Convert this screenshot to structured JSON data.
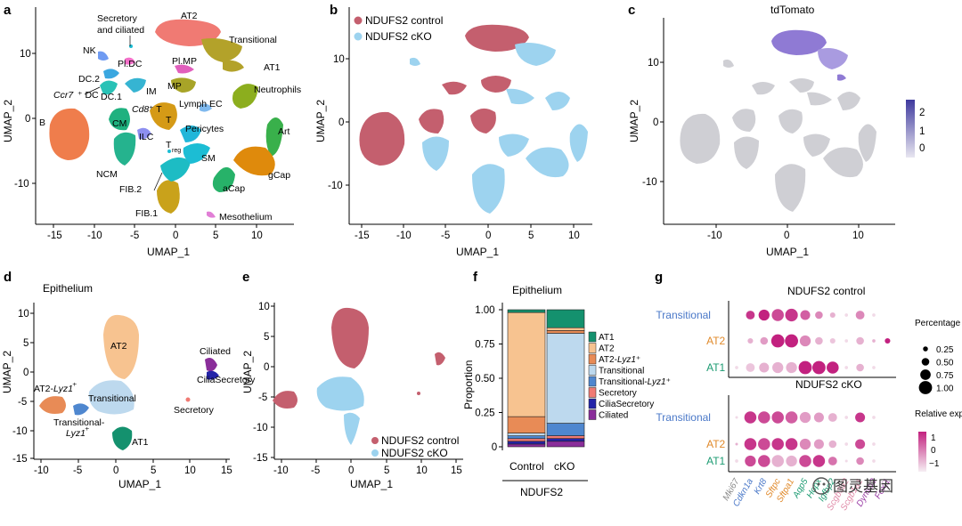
{
  "panels": {
    "a": {
      "letter": "a",
      "xlabel": "UMAP_1",
      "ylabel": "UMAP_2",
      "xticks": [
        "-15",
        "-10",
        "-5",
        "0",
        "5",
        "10"
      ],
      "yticks": [
        "10",
        "0",
        "-10"
      ],
      "clusters": [
        {
          "label": "AT2",
          "color": "#f07a73"
        },
        {
          "label": "Transitional",
          "color": "#b3a22a"
        },
        {
          "label": "AT1",
          "color": "#b3a22a"
        },
        {
          "label": "Neutrophils",
          "color": "#8cae1e"
        },
        {
          "label": "Art",
          "color": "#39b04b"
        },
        {
          "label": "gCap",
          "color": "#df8a0c"
        },
        {
          "label": "aCap",
          "color": "#27b269"
        },
        {
          "label": "B",
          "color": "#ef7d4c"
        },
        {
          "label": "CM",
          "color": "#1fb17f"
        },
        {
          "label": "NCM",
          "color": "#25b38e"
        },
        {
          "label": "FIB.1",
          "color": "#c9a21b"
        },
        {
          "label": "FIB.2",
          "color": "#1dbcc4"
        },
        {
          "label": "SM",
          "color": "#1cbdd4"
        },
        {
          "label": "Pericytes",
          "color": "#21b6d9"
        },
        {
          "label": "T",
          "color": "#d59a16"
        },
        {
          "label": "ILC",
          "color": "#8d8ff0"
        },
        {
          "label": "Lymph EC",
          "color": "#7fb9ee"
        },
        {
          "label": "MP",
          "color": "#a8a428"
        },
        {
          "label": "Pl.MP",
          "color": "#e15fbd"
        },
        {
          "label": "IM",
          "color": "#36b4d2"
        },
        {
          "label": "DC.1",
          "color": "#29c2b6"
        },
        {
          "label": "DC.2",
          "color": "#3aa7e0"
        },
        {
          "label": "NK",
          "color": "#6f9bf2"
        },
        {
          "label": "Pl.DC",
          "color": "#f36fc9"
        },
        {
          "label": "Mesothelium",
          "color": "#e17fd6"
        }
      ],
      "labels": {
        "sec": "Secretory",
        "sec2": "and ciliated",
        "ccr7": "Ccr7",
        "ccr7b": "⁺ DC",
        "cd8": "Cd8",
        "cd8b": "⁺ T",
        "treg": "T",
        "tregsub": "reg"
      }
    },
    "b": {
      "letter": "b",
      "xlabel": "UMAP_1",
      "ylabel": "UMAP_2",
      "xticks": [
        "-15",
        "-10",
        "-5",
        "0",
        "5",
        "10"
      ],
      "yticks": [
        "10",
        "0",
        "-10"
      ],
      "legend": [
        {
          "label": "NDUFS2 control",
          "color": "#c45f6e"
        },
        {
          "label": "NDUFS2 cKO",
          "color": "#9dd3ef"
        }
      ]
    },
    "c": {
      "letter": "c",
      "title": "tdTomato",
      "xlabel": "UMAP_1",
      "ylabel": "UMAP_2",
      "xticks": [
        "-10",
        "0",
        "10"
      ],
      "yticks": [
        "10",
        "0",
        "-10"
      ],
      "scale": [
        "2",
        "1",
        "0"
      ]
    },
    "d": {
      "letter": "d",
      "title": "Epithelium",
      "xlabel": "UMAP_1",
      "ylabel": "UMAP_2",
      "xticks": [
        "-10",
        "-5",
        "0",
        "5",
        "10",
        "15"
      ],
      "yticks": [
        "10",
        "5",
        "0",
        "-5",
        "-10",
        "-15"
      ],
      "labels": {
        "at2": "AT2",
        "ciliated": "Ciliated",
        "ciliasec": "CiliaSecretory",
        "at2lyz": "AT2-",
        "lyz": "Lyz1",
        "plus": "⁺",
        "trans": "Transitional",
        "translyz1": "Transitional-",
        "secretory": "Secretory",
        "at1": "AT1"
      }
    },
    "e": {
      "letter": "e",
      "xlabel": "UMAP_1",
      "ylabel": "UMAP_2",
      "xticks": [
        "-10",
        "-5",
        "0",
        "5",
        "10",
        "15"
      ],
      "yticks": [
        "10",
        "5",
        "0",
        "-5",
        "-10",
        "-15"
      ],
      "legend": [
        {
          "label": "NDUFS2 control",
          "color": "#c45f6e"
        },
        {
          "label": "NDUFS2 cKO",
          "color": "#9dd3ef"
        }
      ]
    },
    "f": {
      "letter": "f",
      "title": "Epithelium",
      "ylabel": "Proportion",
      "group": "NDUFS2"
    },
    "g": {
      "letter": "g",
      "title1": "NDUFS2 control",
      "title2": "NDUFS2 cKO",
      "leg_pct_title": "Percentage expression",
      "leg_rel_title": "Relative expression",
      "watermark": "图灵基因"
    }
  },
  "chart_data": [
    {
      "type": "scatter",
      "panel": "a",
      "title": "",
      "xlabel": "UMAP_1",
      "ylabel": "UMAP_2",
      "xlim": [
        -17,
        14
      ],
      "ylim": [
        -14,
        14
      ]
    },
    {
      "type": "bar",
      "panel": "f",
      "title": "Epithelium",
      "xlabel": "",
      "ylabel": "Proportion",
      "ylim": [
        0,
        1
      ],
      "yticks": [
        "0",
        "0.25",
        "0.50",
        "0.75",
        "1.00"
      ],
      "categories": [
        "Control",
        "cKO"
      ],
      "series": [
        {
          "name": "AT1",
          "color": "#14916e",
          "values": [
            0.02,
            0.13
          ]
        },
        {
          "name": "AT2",
          "color": "#f7c390",
          "values": [
            0.76,
            0.02
          ]
        },
        {
          "name": "AT2-Lyz1⁺",
          "color": "#e88b56",
          "values": [
            0.12,
            0.02
          ]
        },
        {
          "name": "Transitional",
          "color": "#bdd9ee",
          "values": [
            0.02,
            0.65
          ]
        },
        {
          "name": "Transitional-Lyz1⁺",
          "color": "#4f87cf",
          "values": [
            0.02,
            0.09
          ]
        },
        {
          "name": "Secretory",
          "color": "#f07a73",
          "values": [
            0.02,
            0.02
          ]
        },
        {
          "name": "CiliaSecretory",
          "color": "#2424a8",
          "values": [
            0.02,
            0.02
          ]
        },
        {
          "name": "Ciliated",
          "color": "#8a2e9a",
          "values": [
            0.02,
            0.04
          ]
        }
      ]
    },
    {
      "type": "scatter",
      "panel": "g",
      "subtype": "dotplot",
      "genes": [
        {
          "name": "Mki67",
          "color": "#8a8a8a"
        },
        {
          "name": "Cdkn1a",
          "color": "#4a78c8"
        },
        {
          "name": "Krt8",
          "color": "#4a78c8"
        },
        {
          "name": "Sftpc",
          "color": "#e0892a"
        },
        {
          "name": "Sftpa1",
          "color": "#e0892a"
        },
        {
          "name": "Aqp5",
          "color": "#1c9b72"
        },
        {
          "name": "Hopx",
          "color": "#1c9b72"
        },
        {
          "name": "Igfbp2",
          "color": "#1c9b72"
        },
        {
          "name": "Scgb3a2",
          "color": "#e08aa8"
        },
        {
          "name": "Scgb1a1",
          "color": "#e08aa8"
        },
        {
          "name": "Dynlrb2",
          "color": "#9b3fa6"
        },
        {
          "name": "Foxj1",
          "color": "#9b3fa6"
        }
      ],
      "rows": [
        {
          "name": "Transitional",
          "color": "#4a78c8"
        },
        {
          "name": "AT2",
          "color": "#e0892a"
        },
        {
          "name": "AT1",
          "color": "#1c9b72"
        }
      ],
      "control_pct": [
        [
          0,
          0.6,
          0.8,
          0.9,
          0.95,
          0.7,
          0.5,
          0.3,
          0.1,
          0.6,
          0.1,
          0
        ],
        [
          0,
          0.3,
          0.5,
          1,
          1,
          0.8,
          0.5,
          0.3,
          0.1,
          0.5,
          0.1,
          0.3
        ],
        [
          0.1,
          0.6,
          0.7,
          0.8,
          0.8,
          1,
          1,
          0.9,
          0.1,
          0.5,
          0.1,
          0
        ]
      ],
      "control_rel": [
        [
          0,
          0.9,
          1,
          0.8,
          0.9,
          0.7,
          0.5,
          0.3,
          0.1,
          0.5,
          0.1,
          0
        ],
        [
          0,
          0.3,
          0.4,
          1,
          1,
          0.5,
          0.3,
          0.2,
          0.1,
          0.3,
          0.3,
          1
        ],
        [
          0.1,
          0.2,
          0.3,
          0.3,
          0.3,
          1,
          1,
          1,
          0.1,
          0.3,
          0.1,
          0
        ]
      ],
      "cko_pct": [
        [
          0.05,
          0.9,
          0.9,
          0.9,
          0.9,
          0.8,
          0.7,
          0.6,
          0.1,
          0.7,
          0.1,
          0
        ],
        [
          0.05,
          0.9,
          0.9,
          0.9,
          0.9,
          0.8,
          0.7,
          0.5,
          0.1,
          0.7,
          0.1,
          0
        ],
        [
          0.1,
          0.8,
          0.9,
          0.9,
          0.8,
          0.9,
          0.9,
          0.6,
          0.05,
          0.5,
          0.1,
          0
        ]
      ],
      "cko_rel": [
        [
          0.1,
          0.9,
          0.8,
          0.8,
          0.7,
          0.4,
          0.4,
          0.3,
          0.1,
          0.9,
          0.1,
          0
        ],
        [
          0.3,
          0.9,
          0.8,
          0.9,
          0.9,
          0.5,
          0.4,
          0.3,
          0.1,
          0.8,
          0.1,
          0
        ],
        [
          0.1,
          0.8,
          0.8,
          0.3,
          0.3,
          0.8,
          0.9,
          0.6,
          0.1,
          0.5,
          0.1,
          0
        ]
      ],
      "size_legend": [
        "0.25",
        "0.50",
        "0.75",
        "1.00"
      ],
      "color_legend": [
        "1",
        "0",
        "−1"
      ]
    }
  ]
}
